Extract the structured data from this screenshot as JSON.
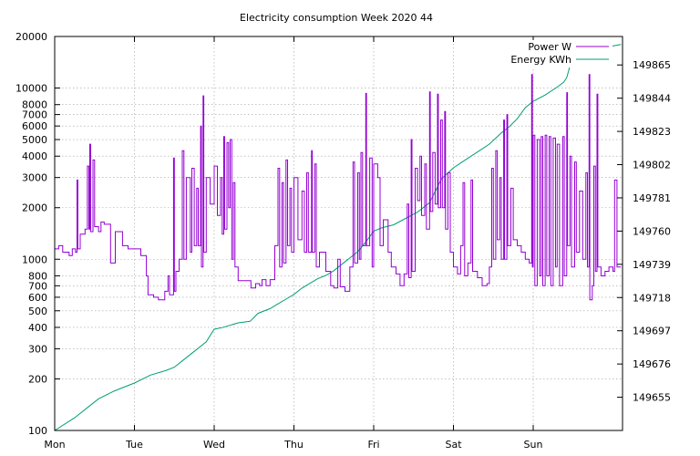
{
  "chart_data": {
    "type": "line",
    "title": "Electricity consumption Week 2020 44",
    "xlabel": "",
    "ylabel": "",
    "x_ticks": [
      "Mon",
      "Tue",
      "Wed",
      "Thu",
      "Fri",
      "Sat",
      "Sun"
    ],
    "y_left": {
      "scale": "log",
      "range": [
        100,
        20000
      ],
      "tick_values": [
        100,
        200,
        300,
        400,
        500,
        600,
        700,
        800,
        1000,
        2000,
        3000,
        4000,
        5000,
        6000,
        7000,
        8000,
        10000,
        20000
      ],
      "tick_labels": [
        "100",
        "200",
        "300",
        "400",
        "500",
        "600",
        "700",
        "800",
        "1000",
        "2000",
        "3000",
        "4000",
        "5000",
        "6000",
        "7000",
        "8000",
        "10000",
        "20000"
      ]
    },
    "y_right": {
      "scale": "linear",
      "range": [
        149634,
        149883
      ],
      "tick_values": [
        149655,
        149676,
        149697,
        149718,
        149739,
        149760,
        149781,
        149802,
        149823,
        149844,
        149865
      ],
      "tick_labels": [
        "149655",
        "149676",
        "149697",
        "149718",
        "149739",
        "149760",
        "149781",
        "149802",
        "149823",
        "149844",
        "149865"
      ]
    },
    "x_unit": "day index (0 = Mon 00:00)",
    "x_range": [
      0,
      7.1
    ],
    "grid": true,
    "legend_position": "top-right",
    "series": [
      {
        "name": "Power W",
        "color": "#9400d3",
        "axis": "left",
        "points": [
          [
            0.0,
            1150
          ],
          [
            0.05,
            1200
          ],
          [
            0.1,
            1100
          ],
          [
            0.18,
            1050
          ],
          [
            0.22,
            1150
          ],
          [
            0.26,
            1100
          ],
          [
            0.28,
            2900
          ],
          [
            0.29,
            1150
          ],
          [
            0.32,
            1400
          ],
          [
            0.38,
            1500
          ],
          [
            0.41,
            3500
          ],
          [
            0.43,
            1500
          ],
          [
            0.44,
            4700
          ],
          [
            0.45,
            1450
          ],
          [
            0.48,
            3800
          ],
          [
            0.5,
            1550
          ],
          [
            0.55,
            1450
          ],
          [
            0.58,
            1650
          ],
          [
            0.62,
            1600
          ],
          [
            0.7,
            950
          ],
          [
            0.76,
            1450
          ],
          [
            0.85,
            1200
          ],
          [
            0.92,
            1150
          ],
          [
            0.97,
            1150
          ],
          [
            1.08,
            1050
          ],
          [
            1.15,
            800
          ],
          [
            1.17,
            620
          ],
          [
            1.24,
            600
          ],
          [
            1.3,
            580
          ],
          [
            1.38,
            650
          ],
          [
            1.42,
            800
          ],
          [
            1.44,
            620
          ],
          [
            1.49,
            3900
          ],
          [
            1.5,
            650
          ],
          [
            1.52,
            850
          ],
          [
            1.56,
            1000
          ],
          [
            1.6,
            4300
          ],
          [
            1.62,
            1000
          ],
          [
            1.65,
            3000
          ],
          [
            1.7,
            1100
          ],
          [
            1.72,
            3400
          ],
          [
            1.75,
            1200
          ],
          [
            1.78,
            2600
          ],
          [
            1.8,
            1200
          ],
          [
            1.83,
            6000
          ],
          [
            1.84,
            900
          ],
          [
            1.86,
            9000
          ],
          [
            1.87,
            1100
          ],
          [
            1.9,
            3000
          ],
          [
            1.95,
            2100
          ],
          [
            2.0,
            3500
          ],
          [
            2.04,
            1800
          ],
          [
            2.08,
            3000
          ],
          [
            2.1,
            1400
          ],
          [
            2.12,
            5200
          ],
          [
            2.13,
            1500
          ],
          [
            2.16,
            4800
          ],
          [
            2.18,
            2000
          ],
          [
            2.2,
            5000
          ],
          [
            2.22,
            1000
          ],
          [
            2.24,
            2800
          ],
          [
            2.26,
            900
          ],
          [
            2.3,
            750
          ],
          [
            2.4,
            750
          ],
          [
            2.46,
            680
          ],
          [
            2.52,
            720
          ],
          [
            2.57,
            700
          ],
          [
            2.6,
            760
          ],
          [
            2.65,
            700
          ],
          [
            2.7,
            760
          ],
          [
            2.76,
            1200
          ],
          [
            2.8,
            3400
          ],
          [
            2.82,
            900
          ],
          [
            2.85,
            2800
          ],
          [
            2.87,
            950
          ],
          [
            2.9,
            3800
          ],
          [
            2.92,
            1200
          ],
          [
            2.95,
            2600
          ],
          [
            2.97,
            1100
          ],
          [
            3.0,
            3000
          ],
          [
            3.05,
            1300
          ],
          [
            3.1,
            2500
          ],
          [
            3.13,
            1100
          ],
          [
            3.16,
            3200
          ],
          [
            3.18,
            1100
          ],
          [
            3.22,
            4300
          ],
          [
            3.23,
            1100
          ],
          [
            3.26,
            3600
          ],
          [
            3.28,
            900
          ],
          [
            3.32,
            1100
          ],
          [
            3.4,
            850
          ],
          [
            3.46,
            700
          ],
          [
            3.5,
            680
          ],
          [
            3.55,
            1000
          ],
          [
            3.58,
            690
          ],
          [
            3.64,
            650
          ],
          [
            3.7,
            900
          ],
          [
            3.74,
            3700
          ],
          [
            3.76,
            950
          ],
          [
            3.8,
            3200
          ],
          [
            3.82,
            1000
          ],
          [
            3.84,
            4200
          ],
          [
            3.86,
            1200
          ],
          [
            3.9,
            9300
          ],
          [
            3.91,
            1200
          ],
          [
            3.95,
            3900
          ],
          [
            3.98,
            900
          ],
          [
            4.0,
            3600
          ],
          [
            4.05,
            3000
          ],
          [
            4.08,
            1200
          ],
          [
            4.12,
            1700
          ],
          [
            4.18,
            1100
          ],
          [
            4.22,
            900
          ],
          [
            4.28,
            820
          ],
          [
            4.33,
            700
          ],
          [
            4.38,
            820
          ],
          [
            4.42,
            2100
          ],
          [
            4.44,
            780
          ],
          [
            4.47,
            5000
          ],
          [
            4.48,
            850
          ],
          [
            4.52,
            3400
          ],
          [
            4.55,
            2200
          ],
          [
            4.58,
            4000
          ],
          [
            4.6,
            1800
          ],
          [
            4.64,
            3600
          ],
          [
            4.66,
            1500
          ],
          [
            4.7,
            9500
          ],
          [
            4.71,
            1900
          ],
          [
            4.74,
            4200
          ],
          [
            4.77,
            2100
          ],
          [
            4.8,
            9200
          ],
          [
            4.81,
            2000
          ],
          [
            4.84,
            6500
          ],
          [
            4.86,
            2000
          ],
          [
            4.89,
            7300
          ],
          [
            4.9,
            1500
          ],
          [
            4.93,
            3200
          ],
          [
            4.96,
            1100
          ],
          [
            5.0,
            900
          ],
          [
            5.05,
            820
          ],
          [
            5.09,
            1200
          ],
          [
            5.12,
            2800
          ],
          [
            5.14,
            800
          ],
          [
            5.18,
            950
          ],
          [
            5.22,
            2900
          ],
          [
            5.24,
            850
          ],
          [
            5.3,
            780
          ],
          [
            5.36,
            700
          ],
          [
            5.42,
            720
          ],
          [
            5.45,
            900
          ],
          [
            5.48,
            3400
          ],
          [
            5.5,
            1000
          ],
          [
            5.53,
            4300
          ],
          [
            5.55,
            1300
          ],
          [
            5.58,
            3000
          ],
          [
            5.6,
            1000
          ],
          [
            5.63,
            6500
          ],
          [
            5.64,
            1000
          ],
          [
            5.67,
            7000
          ],
          [
            5.68,
            1200
          ],
          [
            5.72,
            2600
          ],
          [
            5.75,
            1300
          ],
          [
            5.8,
            1200
          ],
          [
            5.85,
            1100
          ],
          [
            5.9,
            1000
          ],
          [
            5.95,
            950
          ],
          [
            5.98,
            12000
          ],
          [
            5.99,
            900
          ],
          [
            6.0,
            5300
          ],
          [
            6.02,
            700
          ],
          [
            6.05,
            5000
          ],
          [
            6.08,
            800
          ],
          [
            6.1,
            5200
          ],
          [
            6.12,
            700
          ],
          [
            6.15,
            5300
          ],
          [
            6.17,
            800
          ],
          [
            6.2,
            5200
          ],
          [
            6.22,
            700
          ],
          [
            6.25,
            5100
          ],
          [
            6.28,
            900
          ],
          [
            6.3,
            4700
          ],
          [
            6.33,
            700
          ],
          [
            6.37,
            5200
          ],
          [
            6.39,
            800
          ],
          [
            6.42,
            9400
          ],
          [
            6.43,
            1200
          ],
          [
            6.46,
            4000
          ],
          [
            6.48,
            900
          ],
          [
            6.52,
            3700
          ],
          [
            6.54,
            1100
          ],
          [
            6.58,
            2500
          ],
          [
            6.62,
            1000
          ],
          [
            6.66,
            3200
          ],
          [
            6.68,
            900
          ],
          [
            6.7,
            12000
          ],
          [
            6.71,
            580
          ],
          [
            6.74,
            700
          ],
          [
            6.76,
            3500
          ],
          [
            6.78,
            850
          ],
          [
            6.8,
            9200
          ],
          [
            6.81,
            900
          ],
          [
            6.85,
            800
          ],
          [
            6.9,
            850
          ],
          [
            6.95,
            900
          ],
          [
            7.0,
            850
          ],
          [
            7.02,
            2900
          ],
          [
            7.05,
            900
          ],
          [
            7.1,
            900
          ]
        ]
      },
      {
        "name": "Energy KWh",
        "color": "#009e73",
        "axis": "right",
        "points": [
          [
            0.0,
            149634
          ],
          [
            0.25,
            149642
          ],
          [
            0.45,
            149650
          ],
          [
            0.55,
            149654
          ],
          [
            0.75,
            149659
          ],
          [
            0.9,
            149662
          ],
          [
            1.0,
            149664
          ],
          [
            1.2,
            149669
          ],
          [
            1.4,
            149672
          ],
          [
            1.5,
            149674
          ],
          [
            1.6,
            149678
          ],
          [
            1.75,
            149684
          ],
          [
            1.9,
            149690
          ],
          [
            2.0,
            149698
          ],
          [
            2.1,
            149699
          ],
          [
            2.3,
            149702
          ],
          [
            2.45,
            149703
          ],
          [
            2.55,
            149708
          ],
          [
            2.7,
            149711
          ],
          [
            2.8,
            149714
          ],
          [
            2.9,
            149717
          ],
          [
            3.0,
            149720
          ],
          [
            3.1,
            149724
          ],
          [
            3.2,
            149727
          ],
          [
            3.3,
            149730
          ],
          [
            3.4,
            149732
          ],
          [
            3.5,
            149735
          ],
          [
            3.6,
            149739
          ],
          [
            3.7,
            149743
          ],
          [
            3.8,
            149747
          ],
          [
            3.9,
            149753
          ],
          [
            4.0,
            149760
          ],
          [
            4.1,
            149762
          ],
          [
            4.25,
            149764
          ],
          [
            4.4,
            149768
          ],
          [
            4.55,
            149772
          ],
          [
            4.7,
            149778
          ],
          [
            4.85,
            149793
          ],
          [
            5.0,
            149800
          ],
          [
            5.15,
            149805
          ],
          [
            5.3,
            149810
          ],
          [
            5.45,
            149815
          ],
          [
            5.6,
            149822
          ],
          [
            5.7,
            149826
          ],
          [
            5.8,
            149831
          ],
          [
            5.9,
            149838
          ],
          [
            6.0,
            149842
          ],
          [
            6.15,
            149846
          ],
          [
            6.3,
            149851
          ],
          [
            6.38,
            149854
          ],
          [
            6.42,
            149857
          ],
          [
            6.47,
            149866
          ],
          [
            6.52,
            149870
          ],
          [
            6.6,
            149872
          ],
          [
            6.7,
            149873
          ],
          [
            6.85,
            149875
          ],
          [
            7.0,
            149877
          ],
          [
            7.1,
            149878
          ]
        ]
      }
    ]
  }
}
